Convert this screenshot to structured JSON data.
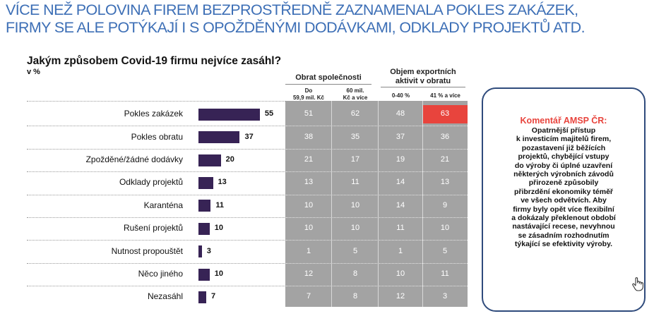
{
  "headline": {
    "line1": "VÍCE NEŽ POLOVINA FIREM BEZPROSTŘEDNĚ ZAZNAMENALA POKLES ZAKÁZEK,",
    "line2": "FIRMY SE ALE POTÝKAJÍ I S OPOŽDĚNÝMI DODÁVKAMI, ODKLADY PROJEKTŮ ATD."
  },
  "chart_data": {
    "type": "bar",
    "title": "Jakým způsobem Covid-19 firmu nejvíce zasáhl?",
    "unit": "v %",
    "categories": [
      "Pokles zakázek",
      "Pokles obratu",
      "Zpožděné/žádné dodávky",
      "Odklady projektů",
      "Karanténa",
      "Rušení projektů",
      "Nutnost propouštět",
      "Něco jiného",
      "Nezasáhl"
    ],
    "values": [
      55,
      37,
      20,
      13,
      11,
      10,
      3,
      10,
      7
    ],
    "groups": [
      {
        "name": "Obrat společnosti",
        "columns": [
          {
            "name": "Do 59,9 mil. Kč",
            "values": [
              51,
              38,
              21,
              13,
              10,
              10,
              1,
              12,
              7
            ]
          },
          {
            "name": "60 mil. Kč a více",
            "values": [
              62,
              35,
              17,
              11,
              10,
              10,
              5,
              8,
              8
            ]
          }
        ]
      },
      {
        "name": "Objem exportních aktivit v obratu",
        "columns": [
          {
            "name": "0-40 %",
            "values": [
              48,
              37,
              19,
              14,
              14,
              11,
              1,
              10,
              12
            ]
          },
          {
            "name": "41 % a více",
            "values": [
              63,
              36,
              21,
              13,
              9,
              10,
              5,
              11,
              3
            ]
          }
        ]
      }
    ],
    "sub_labels": {
      "col1": [
        "Do",
        "59,9 mil. Kč"
      ],
      "col2": [
        "60 mil.",
        "Kč a více"
      ],
      "col3": [
        "0-40 %"
      ],
      "col4": [
        "41 % a více"
      ]
    },
    "group_labels": {
      "g2": [
        "Objem exportních",
        "aktivit v obratu"
      ]
    },
    "highlight": {
      "row": 0,
      "column": 3,
      "color": "#e8443d"
    },
    "bar_color": "#372355",
    "table_color": "#a3a3a3"
  },
  "comment": {
    "title": "Komentář AMSP ČR:",
    "lines": [
      "Opatrnější přístup",
      "k investicím majitelů firem,",
      "pozastavení již běžících",
      "projektů, chybějící vstupy",
      "do výroby či úplné uzavření",
      "některých výrobních závodů",
      "přirozeně způsobily",
      "přibrzdění ekonomiky téměř",
      "ve všech odvětvích. Aby",
      "firmy byly opět více flexibilní",
      "a dokázaly překlenout období",
      "nastávající recese, nevyhnou",
      "se zásadním rozhodnutím",
      "týkající se efektivity výroby."
    ],
    "icon": "hand-pointer-icon",
    "border_color": "#2f4b7c"
  }
}
